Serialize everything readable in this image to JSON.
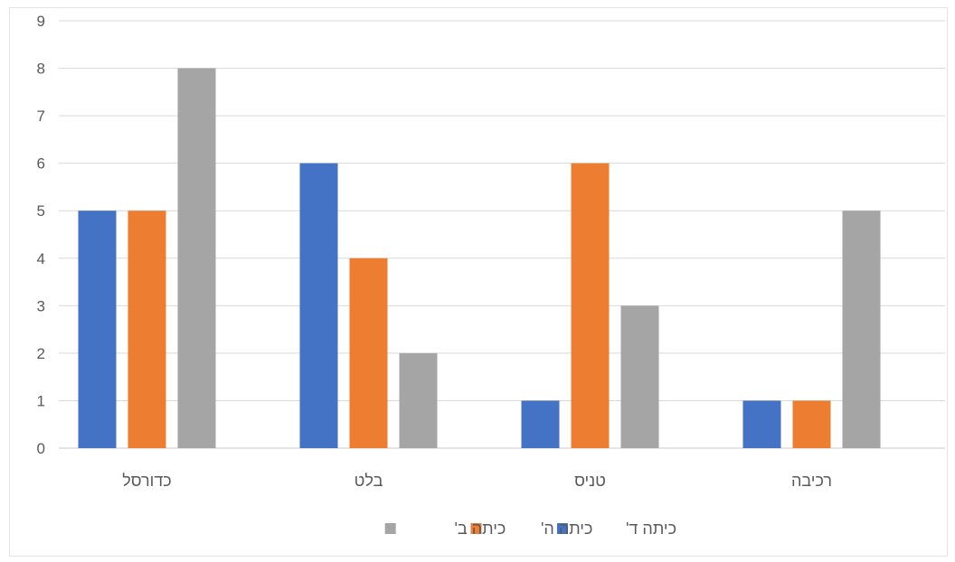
{
  "chart_data": {
    "type": "bar",
    "title": "",
    "xlabel": "",
    "ylabel": "",
    "categories": [
      "כדורסל",
      "בלט",
      "טניס",
      "רכיבה"
    ],
    "series": [
      {
        "name": "כיתה ד'",
        "values": [
          5,
          6,
          1,
          1
        ],
        "color": "#4472C4"
      },
      {
        "name": "כיתה ה'",
        "values": [
          5,
          4,
          6,
          1
        ],
        "color": "#ED7D31"
      },
      {
        "name": "כיתה ב'",
        "values": [
          8,
          2,
          3,
          5
        ],
        "color": "#A5A5A5"
      }
    ],
    "ylim": [
      0,
      9
    ],
    "yticks": [
      0,
      1,
      2,
      3,
      4,
      5,
      6,
      7,
      8,
      9
    ],
    "grid": true,
    "legend_position": "bottom"
  }
}
